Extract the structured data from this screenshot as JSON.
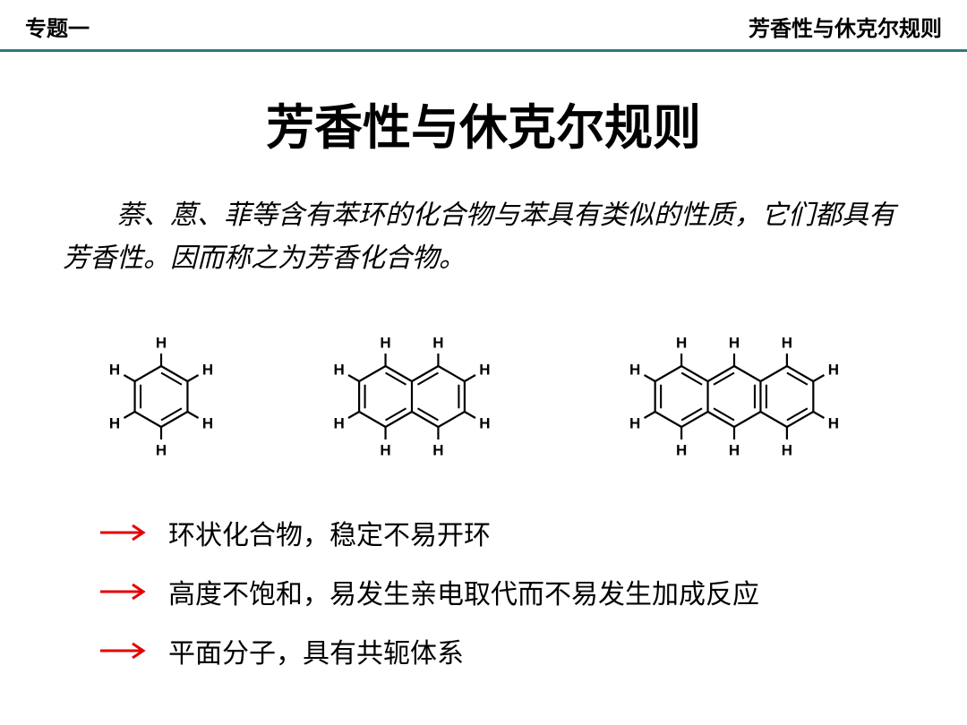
{
  "header": {
    "left": "专题一",
    "right": "芳香性与休克尔规则",
    "fontsize": 24,
    "border_color": "#2d7a7a"
  },
  "title": {
    "text": "芳香性与休克尔规则",
    "fontsize": 54
  },
  "intro": {
    "text": "萘、蒽、菲等含有苯环的化合物与苯具有类似的性质，它们都具有芳香性。因而称之为芳香化合物。",
    "fontsize": 30
  },
  "molecules": {
    "label_fontsize": 17,
    "bond_color": "#000000",
    "bond_width": 2.2,
    "items": [
      {
        "name": "benzene",
        "rings": 1
      },
      {
        "name": "naphthalene",
        "rings": 2
      },
      {
        "name": "anthracene",
        "rings": 3
      }
    ]
  },
  "bullets": {
    "arrow_color": "#e60000",
    "arrow_width": 3,
    "fontsize": 30,
    "items": [
      "环状化合物，稳定不易开环",
      "高度不饱和，易发生亲电取代而不易发生加成反应",
      "平面分子，具有共轭体系"
    ]
  },
  "colors": {
    "text": "#000000",
    "background": "#ffffff"
  }
}
